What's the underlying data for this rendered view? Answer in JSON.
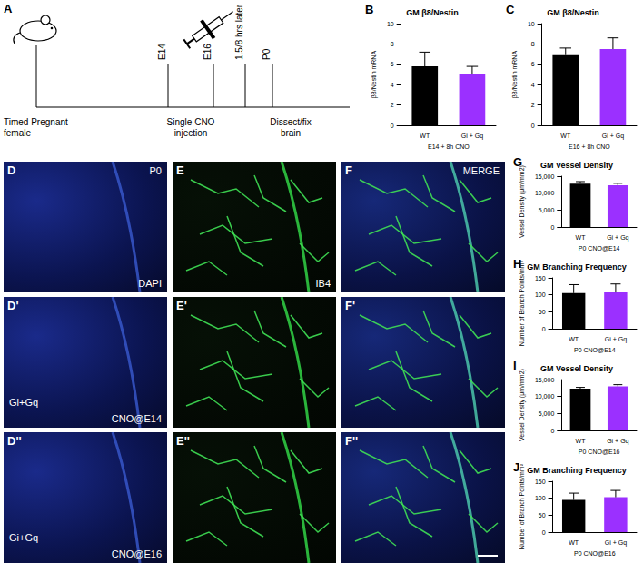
{
  "timeline": {
    "panel": "A",
    "start": "Timed Pregnant female",
    "events": [
      "E14",
      "E16",
      "1.5/8 hrs later",
      "P0"
    ],
    "injection": "Single CNO injection",
    "end": "Dissect/fix brain"
  },
  "images": {
    "channels": [
      "DAPI",
      "IB4",
      "MERGE"
    ],
    "rows": [
      {
        "panels": [
          "D",
          "E",
          "F"
        ],
        "stage": "P0"
      },
      {
        "panels": [
          "D'",
          "E'",
          "F'"
        ],
        "group": "Gi+Gq",
        "treatment": "CNO@E14"
      },
      {
        "panels": [
          "D''",
          "E''",
          "F''"
        ],
        "group": "Gi+Gq",
        "treatment": "CNO@E16"
      }
    ]
  },
  "chart_data": [
    {
      "type": "bar",
      "panel": "B",
      "title": "GM β8/Nestin",
      "ylabel": "β8/Nestin mRNA",
      "xlabel": "E14 + 8h CNO",
      "categories": [
        "WT",
        "Gi + Gq"
      ],
      "values": [
        5.8,
        5.0
      ],
      "errors": [
        1.4,
        0.8
      ],
      "colors": [
        "#000000",
        "#9b30ff"
      ],
      "ylim": [
        0,
        10
      ],
      "yticks": [
        0,
        2,
        4,
        6,
        8,
        10
      ],
      "grid": false
    },
    {
      "type": "bar",
      "panel": "C",
      "title": "GM β8/Nestin",
      "ylabel": "β8/Nestin mRNA",
      "xlabel": "E16 + 8h CNO",
      "categories": [
        "WT",
        "Gi + Gq"
      ],
      "values": [
        6.9,
        7.5
      ],
      "errors": [
        0.7,
        1.1
      ],
      "colors": [
        "#000000",
        "#9b30ff"
      ],
      "ylim": [
        0,
        10
      ],
      "yticks": [
        0,
        2,
        4,
        6,
        8,
        10
      ],
      "grid": false
    },
    {
      "type": "bar",
      "panel": "G",
      "title": "GM Vessel Density",
      "ylabel": "Vessel Density (μm/mm2)",
      "xlabel": "P0 CNO@E14",
      "categories": [
        "WT",
        "Gi + Gq"
      ],
      "values": [
        12800,
        12300
      ],
      "errors": [
        600,
        600
      ],
      "colors": [
        "#000000",
        "#9b30ff"
      ],
      "ylim": [
        0,
        15000
      ],
      "yticks": [
        0,
        5000,
        10000,
        15000
      ],
      "grid": false
    },
    {
      "type": "bar",
      "panel": "H",
      "title": "GM Branching Frequency",
      "ylabel": "Number of Branch Points/mm²",
      "xlabel": "P0 CNO@E14",
      "categories": [
        "WT",
        "Gi + Gq"
      ],
      "values": [
        105,
        107
      ],
      "errors": [
        25,
        25
      ],
      "colors": [
        "#000000",
        "#9b30ff"
      ],
      "ylim": [
        0,
        150
      ],
      "yticks": [
        0,
        50,
        100,
        150
      ],
      "grid": false
    },
    {
      "type": "bar",
      "panel": "I",
      "title": "GM Vessel Density",
      "ylabel": "Vessel Density (μm/mm2)",
      "xlabel": "P0 CNO@E16",
      "categories": [
        "WT",
        "Gi + Gq"
      ],
      "values": [
        12300,
        13000
      ],
      "errors": [
        400,
        500
      ],
      "colors": [
        "#000000",
        "#9b30ff"
      ],
      "ylim": [
        0,
        15000
      ],
      "yticks": [
        0,
        5000,
        10000,
        15000
      ],
      "grid": false
    },
    {
      "type": "bar",
      "panel": "J",
      "title": "GM Branching Frequency",
      "ylabel": "Number of Branch Points/mm²",
      "xlabel": "P0 CNO@E16",
      "categories": [
        "WT",
        "Gi + Gq"
      ],
      "values": [
        95,
        103
      ],
      "errors": [
        20,
        20
      ],
      "colors": [
        "#000000",
        "#9b30ff"
      ],
      "ylim": [
        0,
        150
      ],
      "yticks": [
        0,
        50,
        100,
        150
      ],
      "grid": false
    }
  ]
}
